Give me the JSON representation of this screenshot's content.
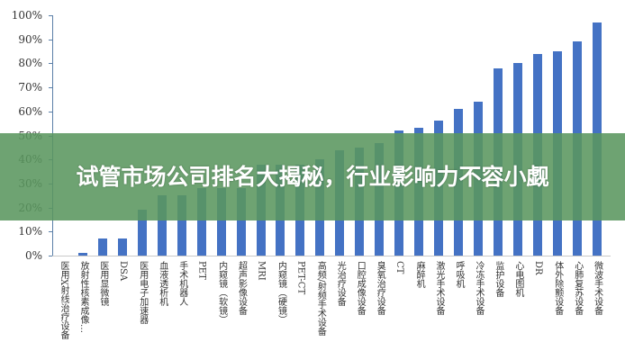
{
  "banner": {
    "title": "试管市场公司排名大揭秘，行业影响力不容小觑"
  },
  "colors": {
    "bar": "#4472c4",
    "banner": "#5a965f",
    "axis": "#5b7fa8"
  },
  "chart_data": {
    "type": "bar",
    "title": "",
    "xlabel": "",
    "ylabel": "",
    "ylim": [
      0,
      100
    ],
    "yticks": [
      "0%",
      "10%",
      "20%",
      "30%",
      "40%",
      "50%",
      "60%",
      "70%",
      "80%",
      "90%",
      "100%"
    ],
    "grid": false,
    "legend": null,
    "categories": [
      "医用X射线治疗设备",
      "放射性核素成像…",
      "医用显微镜",
      "DSA",
      "医用电子加速器",
      "血液透析机",
      "手术机器人",
      "PET",
      "内窥镜（软镜）",
      "超声影像设备",
      "MRI",
      "内窥镜（硬镜）",
      "PET-CT",
      "高频/射频手术设备",
      "光治疗设备",
      "口腔成像设备",
      "臭氧治疗设备",
      "CT",
      "麻醉机",
      "激光手术设备",
      "呼吸机",
      "冷冻手术设备",
      "监护设备",
      "心电图机",
      "DR",
      "体外除颤设备",
      "心肺复苏设备",
      "微波手术设备"
    ],
    "values": [
      0,
      1,
      7,
      7,
      19,
      25,
      25,
      28,
      28,
      28,
      38,
      38,
      38,
      40,
      44,
      45,
      47,
      52,
      53,
      56,
      61,
      64,
      78,
      80,
      84,
      85,
      89,
      97
    ],
    "unit": "%"
  }
}
